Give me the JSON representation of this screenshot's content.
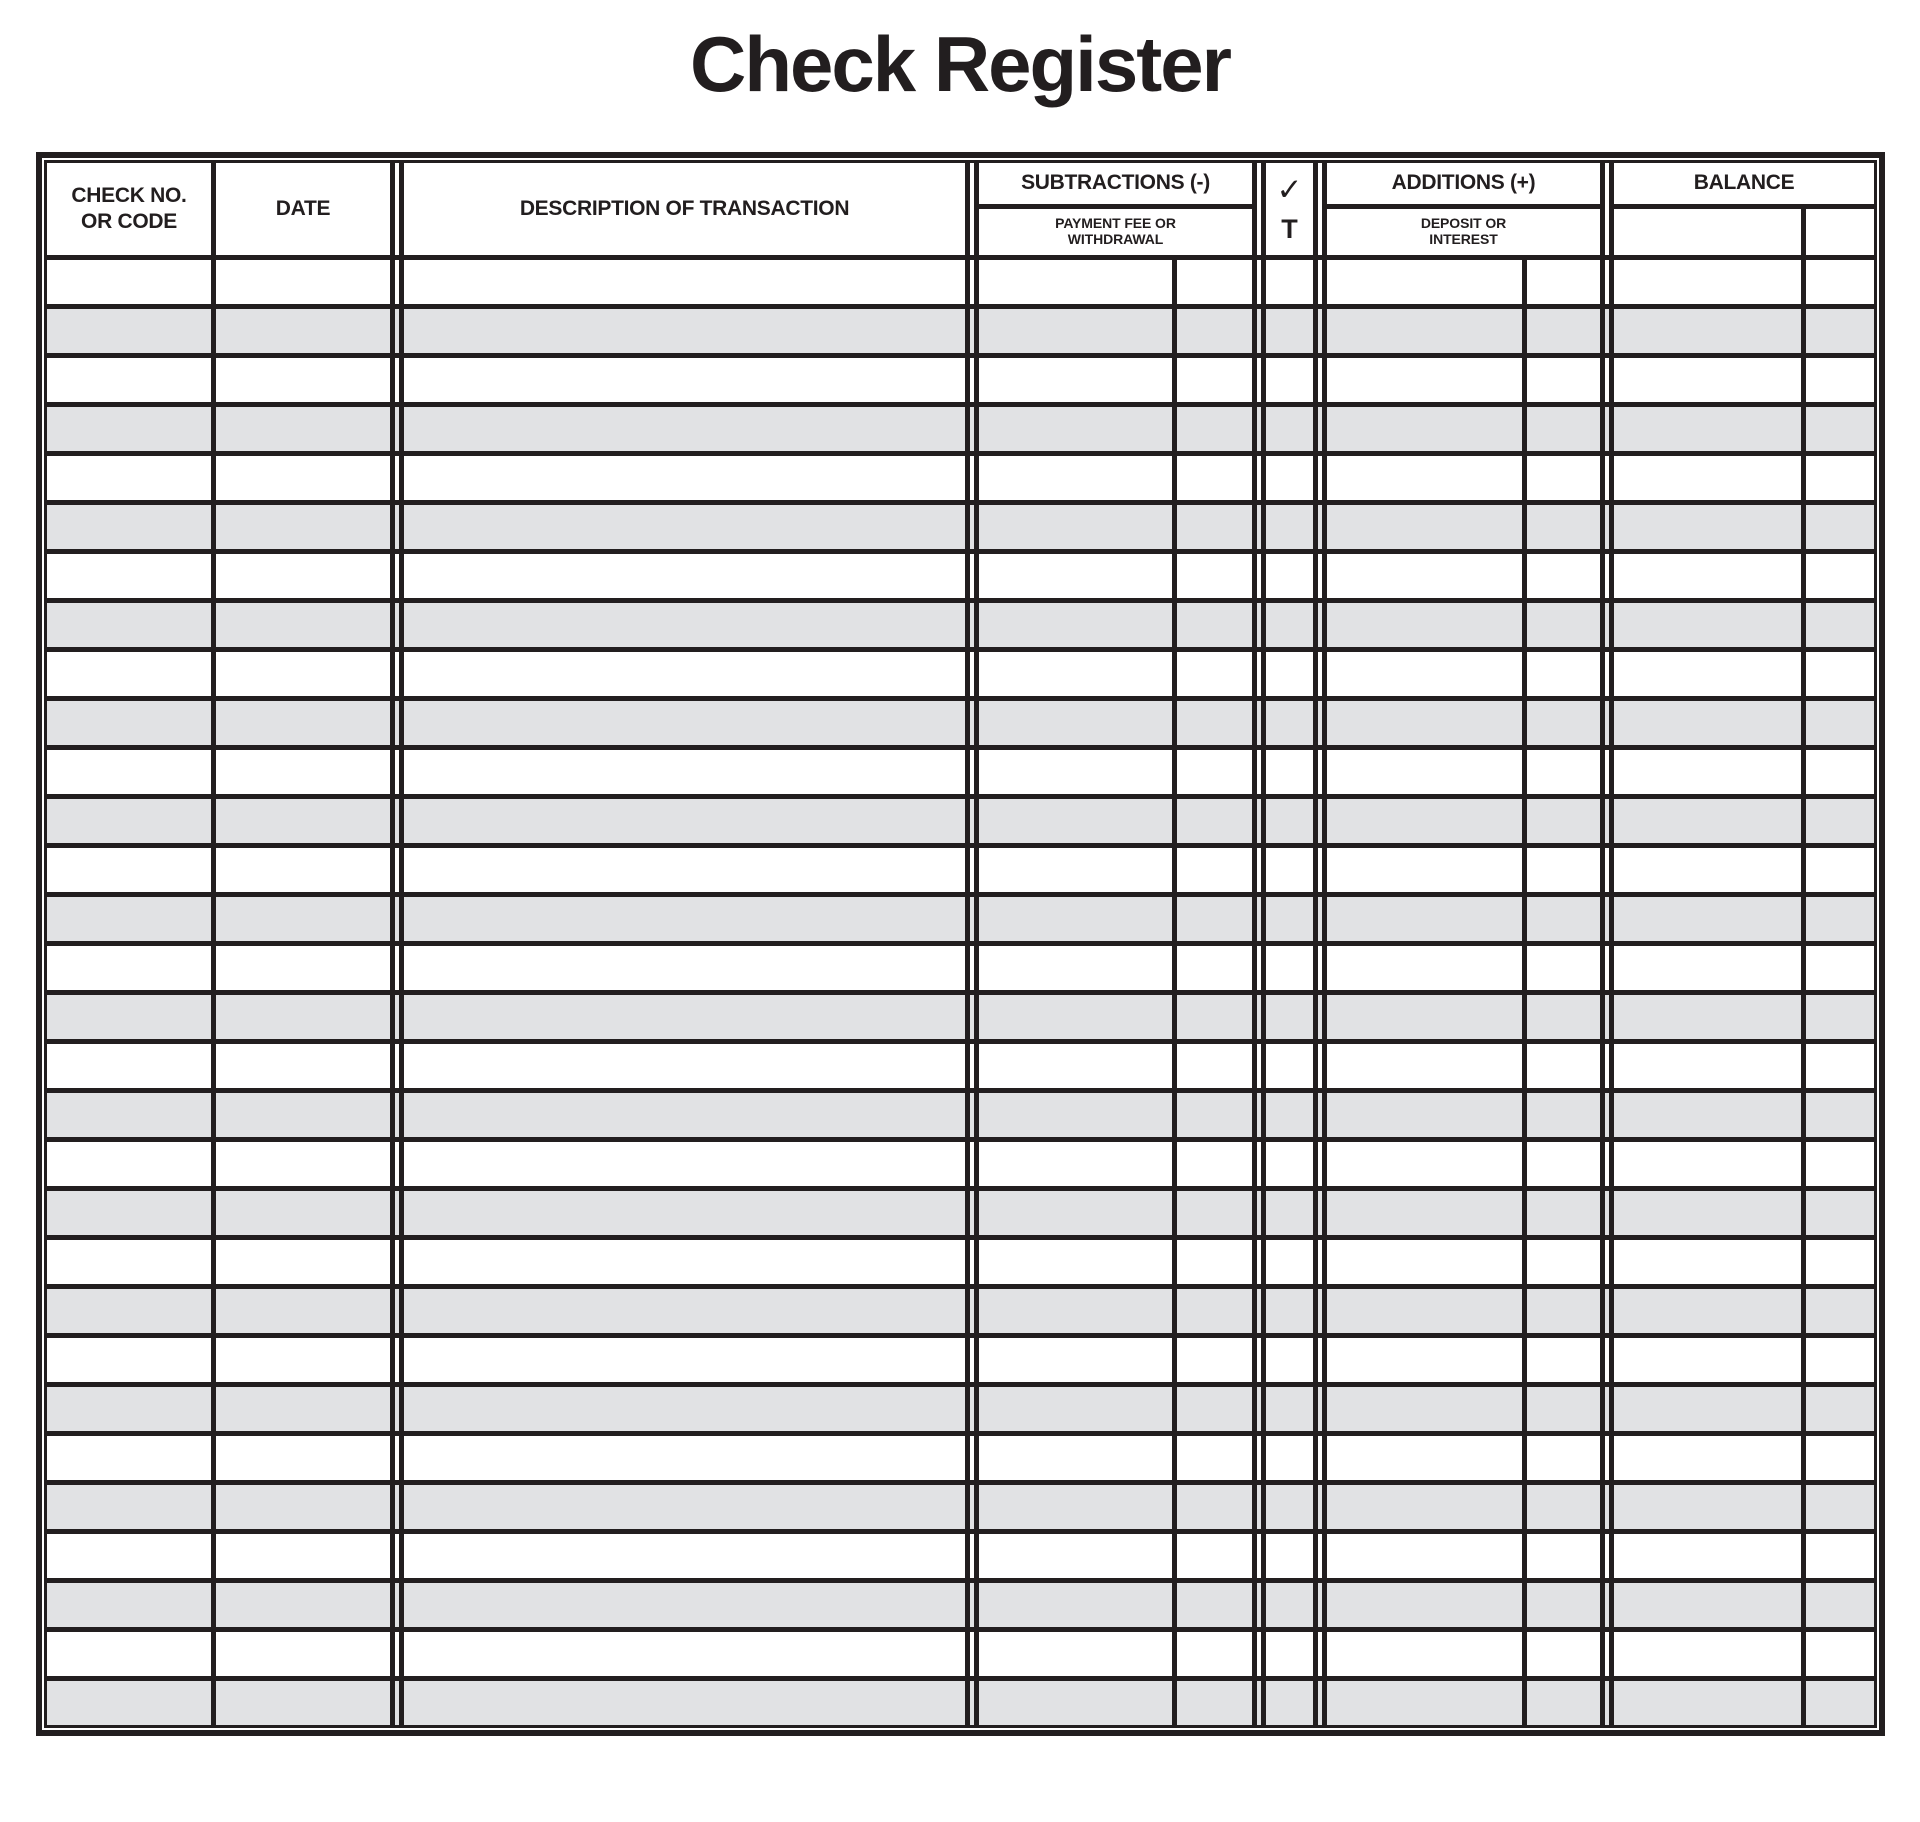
{
  "title": "Check Register",
  "colors": {
    "ink": "#221e1f",
    "row_alt": "#e1e2e4"
  },
  "table": {
    "columns": {
      "check_no_line1": "CHECK NO.",
      "check_no_line2": "OR CODE",
      "date": "DATE",
      "description": "DESCRIPTION OF TRANSACTION",
      "subtractions": "SUBTRACTIONS (-)",
      "subtractions_sub_line1": "PAYMENT FEE OR",
      "subtractions_sub_line2": "WITHDRAWAL",
      "check_mark": "✓",
      "check_sub": "T",
      "additions": "ADDITIONS (+)",
      "additions_sub_line1": "DEPOSIT OR",
      "additions_sub_line2": "INTEREST",
      "balance": "BALANCE"
    },
    "row_count": 30
  }
}
